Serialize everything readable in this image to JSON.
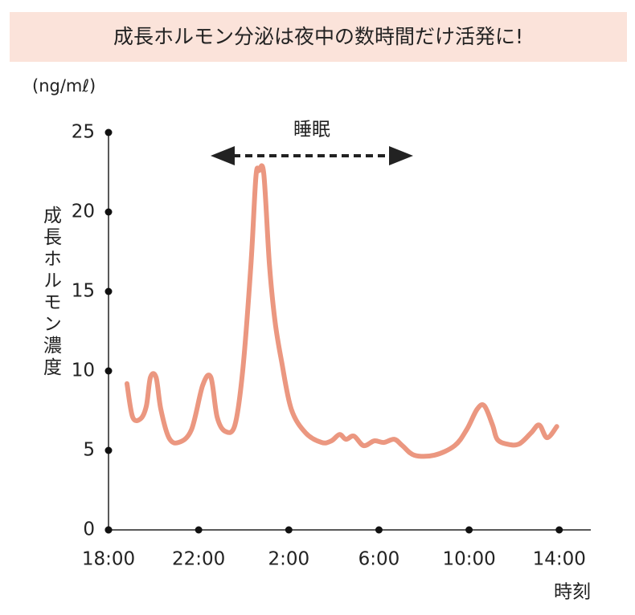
{
  "chart_data": {
    "type": "line",
    "title": "成長ホルモン分泌は夜中の数時間だけ活発に!",
    "unit_label": "(ng/mℓ)",
    "y_label": "成長ホルモン濃度",
    "x_label": "時刻",
    "annotation": "睡眠",
    "color": "#eb9780",
    "x": [
      0.82,
      1.07,
      1.43,
      1.68,
      1.86,
      2.11,
      2.32,
      2.68,
      3.11,
      3.68,
      4.18,
      4.54,
      4.82,
      5.18,
      5.61,
      5.96,
      6.32,
      6.54,
      6.68,
      6.89,
      7.14,
      7.39,
      7.68,
      8.11,
      8.75,
      9.46,
      9.89,
      10.25,
      10.54,
      10.89,
      11.32,
      11.79,
      12.21,
      12.68,
      13.04,
      13.57,
      14.46,
      15.36,
      15.89,
      16.36,
      16.68,
      17.04,
      17.25,
      17.68,
      18.21,
      18.75,
      19.11,
      19.46,
      19.89
    ],
    "values": [
      9.2,
      7.1,
      7.0,
      7.8,
      9.6,
      9.6,
      7.6,
      5.8,
      5.5,
      6.3,
      9.1,
      9.6,
      7.1,
      6.2,
      6.6,
      10.1,
      16.7,
      22.2,
      22.6,
      22.4,
      16.7,
      13.1,
      10.6,
      7.6,
      6.1,
      5.5,
      5.6,
      6.0,
      5.7,
      5.9,
      5.3,
      5.6,
      5.5,
      5.7,
      5.3,
      4.7,
      4.7,
      5.3,
      6.3,
      7.6,
      7.8,
      6.6,
      5.7,
      5.4,
      5.4,
      6.1,
      6.6,
      5.8,
      6.5
    ],
    "xlim": [
      0,
      21.4
    ],
    "ylim": [
      0,
      25
    ],
    "xticks": [
      {
        "value": 0,
        "label": "18:00"
      },
      {
        "value": 4,
        "label": "22:00"
      },
      {
        "value": 8,
        "label": "2:00"
      },
      {
        "value": 12,
        "label": "6:00"
      },
      {
        "value": 16,
        "label": "10:00"
      },
      {
        "value": 20,
        "label": "14:00"
      }
    ],
    "yticks": [
      0,
      5,
      10,
      15,
      20,
      25
    ]
  }
}
